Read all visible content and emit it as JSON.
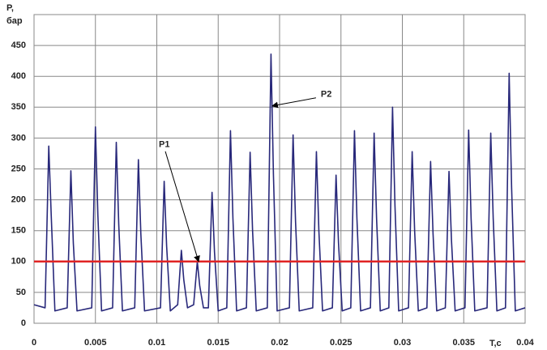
{
  "chart_data": {
    "type": "line",
    "ylabel": "P,",
    "ylabel_unit": "бар",
    "xlabel": "T,c",
    "xlim": [
      0,
      0.04
    ],
    "xticks": [
      0,
      0.005,
      0.01,
      0.015,
      0.02,
      0.025,
      0.03,
      0.035,
      0.04
    ],
    "ylim": [
      0,
      500
    ],
    "yticks": [
      0,
      50,
      100,
      150,
      200,
      250,
      300,
      350,
      400,
      450
    ],
    "grid": true,
    "series": [
      {
        "name": "P2",
        "color": "#28287a",
        "label_at": [
          0.0194,
          352
        ],
        "x": [
          0,
          0.0009,
          0.0012,
          0.0014,
          0.0017,
          0.0027,
          0.003,
          0.0032,
          0.0035,
          0.0047,
          0.005,
          0.0052,
          0.0055,
          0.0064,
          0.0067,
          0.0069,
          0.0072,
          0.0082,
          0.0085,
          0.0087,
          0.009,
          0.0103,
          0.0106,
          0.0108,
          0.0111,
          0.0117,
          0.012,
          0.0122,
          0.0125,
          0.013,
          0.0133,
          0.0135,
          0.0138,
          0.0142,
          0.0145,
          0.0147,
          0.015,
          0.0157,
          0.016,
          0.0162,
          0.0165,
          0.0173,
          0.0176,
          0.0178,
          0.0181,
          0.019,
          0.0193,
          0.0195,
          0.0198,
          0.0208,
          0.0211,
          0.0213,
          0.0216,
          0.0227,
          0.023,
          0.0232,
          0.0235,
          0.0243,
          0.0246,
          0.0248,
          0.0251,
          0.0258,
          0.0261,
          0.0263,
          0.0266,
          0.0274,
          0.0277,
          0.0279,
          0.0282,
          0.0289,
          0.0292,
          0.0294,
          0.0297,
          0.0305,
          0.0308,
          0.031,
          0.0313,
          0.032,
          0.0323,
          0.0325,
          0.0328,
          0.0335,
          0.0338,
          0.034,
          0.0343,
          0.0351,
          0.0354,
          0.0356,
          0.0359,
          0.0369,
          0.0372,
          0.0374,
          0.0377,
          0.0384,
          0.0387,
          0.0389,
          0.0392,
          0.04
        ],
        "values": [
          30,
          25,
          287,
          175,
          20,
          25,
          247,
          130,
          20,
          25,
          318,
          175,
          20,
          25,
          293,
          160,
          20,
          25,
          265,
          145,
          20,
          25,
          230,
          125,
          20,
          30,
          118,
          70,
          25,
          30,
          100,
          60,
          25,
          25,
          212,
          115,
          20,
          25,
          312,
          170,
          20,
          25,
          277,
          150,
          20,
          25,
          436,
          240,
          20,
          25,
          305,
          165,
          20,
          25,
          278,
          150,
          20,
          25,
          240,
          130,
          20,
          25,
          312,
          170,
          20,
          25,
          308,
          170,
          20,
          25,
          350,
          190,
          20,
          25,
          278,
          150,
          20,
          25,
          262,
          145,
          20,
          25,
          246,
          135,
          20,
          25,
          313,
          170,
          20,
          25,
          308,
          170,
          20,
          25,
          405,
          220,
          20,
          25
        ]
      },
      {
        "name": "P1",
        "color": "#e02424",
        "label_at": [
          0.0134,
          100
        ],
        "x": [
          0,
          0.01,
          0.02,
          0.03,
          0.04
        ],
        "values": [
          100,
          100,
          100,
          100,
          100
        ]
      }
    ]
  }
}
